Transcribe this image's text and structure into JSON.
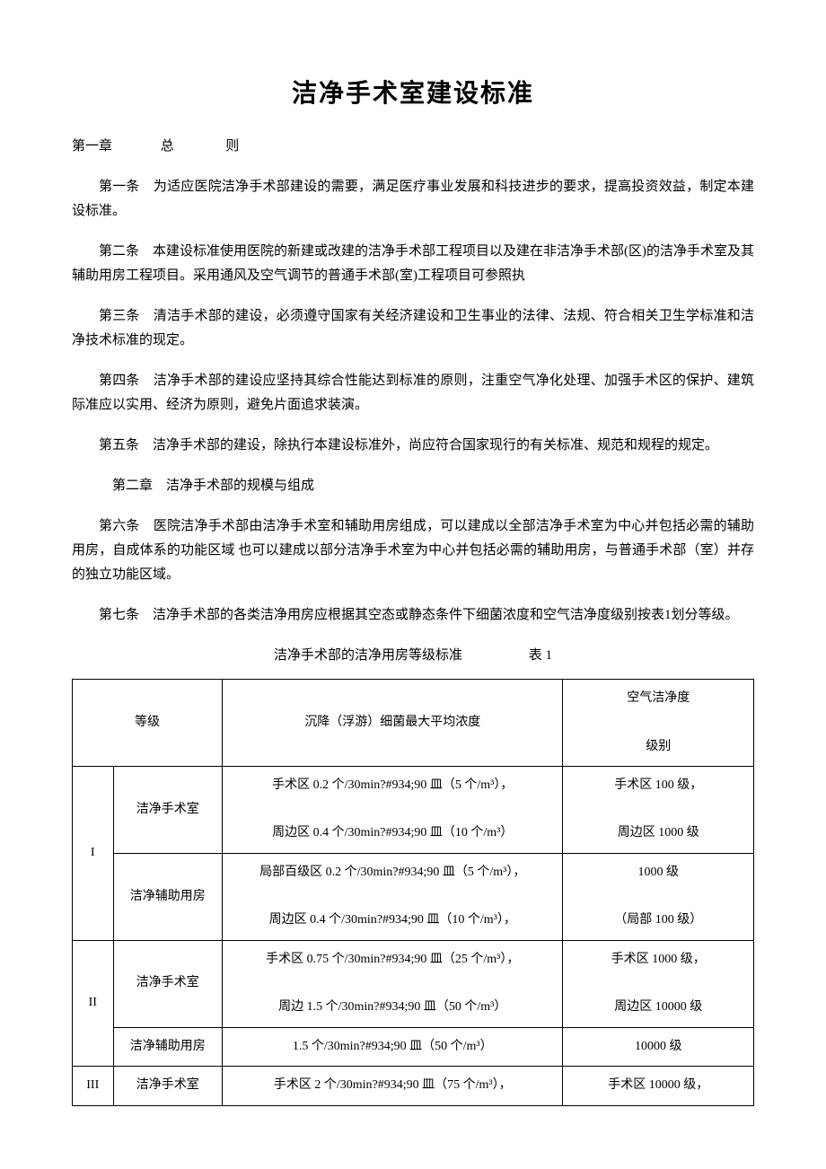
{
  "title": "洁净手术室建设标准",
  "chapter1": {
    "label": "第一章",
    "name": "总",
    "name2": "则"
  },
  "articles": {
    "a1": "第一条　为适应医院洁净手术部建设的需要，满足医疗事业发展和科技进步的要求，提高投资效益，制定本建设标准。",
    "a2": "第二条　本建设标准使用医院的新建或改建的洁净手术部工程项目以及建在非洁净手术部(区)的洁净手术室及其辅助用房工程项目。采用通风及空气调节的普通手术部(室)工程项目可参照执",
    "a3": "第三条　清洁手术部的建设，必须遵守国家有关经济建设和卫生事业的法律、法规、符合相关卫生学标准和洁净技术标准的现定。",
    "a4": "第四条　洁净手术部的建设应坚持其综合性能达到标准的原则，注重空气净化处理、加强手术区的保护、建筑际准应以实用、经济为原则，避免片面追求装演。",
    "a5": "第五条　洁净手术部的建设，除执行本建设标准外，尚应符合国家现行的有关标准、规范和规程的规定。",
    "chapter2": "第二章　洁净手术部的规模与组成",
    "a6": "第六条　医院洁净手术部由洁净手术室和辅助用房组成，可以建成以全部洁净手术室为中心并包括必需的辅助用房，自成体系的功能区域 也可以建成以部分洁净手术室为中心并包括必需的辅助用房，与普通手术部（室）并存的独立功能区域。",
    "a7": "第七条　洁净手术部的各类洁净用房应根据其空态或静态条件下细菌浓度和空气洁净度级别按表1划分等级。"
  },
  "table": {
    "caption": "洁净手术部的洁净用房等级标准",
    "caption_label": "表 1",
    "headers": {
      "level": "等级",
      "concentration": "沉降（浮游）细菌最大平均浓度",
      "cleanliness_l1": "空气洁净度",
      "cleanliness_l2": "级别"
    },
    "rows": [
      {
        "level": "I",
        "subrows": [
          {
            "room": "洁净手术室",
            "conc_l1": "手术区 0.2 个/30min?#934;90 皿（5 个/m³），",
            "conc_l2": "周边区 0.4 个/30min?#934;90 皿（10 个/m³）",
            "clean_l1": "手术区 100 级，",
            "clean_l2": "周边区 1000 级"
          },
          {
            "room": "洁净辅助用房",
            "conc_l1": "局部百级区 0.2 个/30min?#934;90 皿（5 个/m³），",
            "conc_l2": "周边区 0.4 个/30min?#934;90 皿（10 个/m³），",
            "clean_l1": "1000 级",
            "clean_l2": "（局部 100 级）"
          }
        ]
      },
      {
        "level": "II",
        "subrows": [
          {
            "room": "洁净手术室",
            "conc_l1": "手术区 0.75 个/30min?#934;90 皿（25 个/m³），",
            "conc_l2": "周边 1.5 个/30min?#934;90 皿（50 个/m³）",
            "clean_l1": "手术区 1000 级，",
            "clean_l2": "周边区 10000 级"
          },
          {
            "room": "洁净辅助用房",
            "conc_l1": "1.5 个/30min?#934;90 皿（50 个/m³）",
            "conc_l2": "",
            "clean_l1": "10000 级",
            "clean_l2": ""
          }
        ]
      },
      {
        "level": "III",
        "subrows": [
          {
            "room": "洁净手术室",
            "conc_l1": "手术区 2 个/30min?#934;90 皿（75 个/m³），",
            "conc_l2": "",
            "clean_l1": "手术区 10000 级，",
            "clean_l2": ""
          }
        ]
      }
    ]
  }
}
